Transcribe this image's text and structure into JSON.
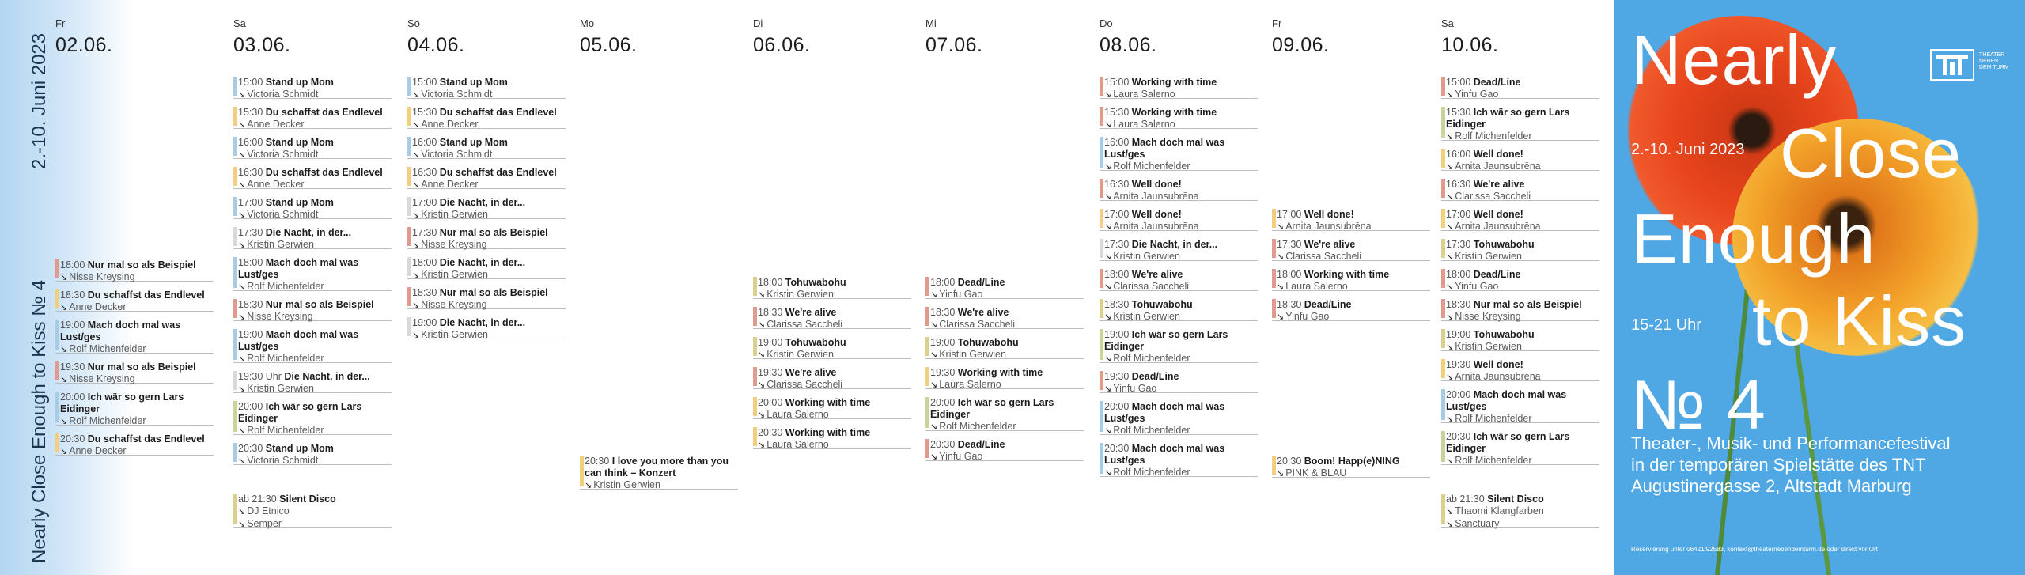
{
  "sidebar": {
    "title": "Nearly Close Enough to Kiss № 4",
    "dates": "2.-10. Juni 2023"
  },
  "days": [
    {
      "dow": "Fr",
      "date": "02.06.",
      "events": [
        {
          "time": "18:00",
          "title": "Nur mal so als Beispiel",
          "person": "Nisse Kreysing",
          "color": "#e39a8e"
        },
        {
          "time": "18:30",
          "title": "Du schaffst das Endlevel",
          "person": "Anne Decker",
          "color": "#f2cf7e"
        },
        {
          "time": "19:00",
          "title": "Mach doch mal was Lust/ges",
          "person": "Rolf Michenfelder",
          "color": "#a9cce6"
        },
        {
          "time": "19:30",
          "title": "Nur mal so als Beispiel",
          "person": "Nisse Kreysing",
          "color": "#e39a8e"
        },
        {
          "time": "20:00",
          "title": "Ich wär so gern Lars Eidinger",
          "person": "Rolf Michenfelder",
          "color": "#a9cce6"
        },
        {
          "time": "20:30",
          "title": "Du schaffst das Endlevel",
          "person": "Anne Decker",
          "color": "#f2cf7e"
        }
      ]
    },
    {
      "dow": "Sa",
      "date": "03.06.",
      "events": [
        {
          "time": "15:00",
          "title": "Stand up Mom",
          "person": "Victoria Schmidt",
          "color": "#a9cce6"
        },
        {
          "time": "15:30",
          "title": "Du schaffst das Endlevel",
          "person": "Anne Decker",
          "color": "#f2cf7e"
        },
        {
          "time": "16:00",
          "title": "Stand up Mom",
          "person": "Victoria Schmidt",
          "color": "#a9cce6"
        },
        {
          "time": "16:30",
          "title": "Du schaffst das Endlevel",
          "person": "Anne Decker",
          "color": "#f2cf7e"
        },
        {
          "time": "17:00",
          "title": "Stand up Mom",
          "person": "Victoria Schmidt",
          "color": "#a9cce6"
        },
        {
          "time": "17:30",
          "title": "Die Nacht, in der...",
          "person": "Kristin Gerwien",
          "color": "#d9d9d9"
        },
        {
          "time": "18:00",
          "title": "Mach doch mal was Lust/ges",
          "person": "Rolf Michenfelder",
          "color": "#a9cce6"
        },
        {
          "time": "18:30",
          "title": "Nur mal so als Beispiel",
          "person": "Nisse Kreysing",
          "color": "#e39a8e"
        },
        {
          "time": "19:00",
          "title": "Mach doch mal was Lust/ges",
          "person": "Rolf Michenfelder",
          "color": "#a9cce6"
        },
        {
          "time": "19:30 Uhr",
          "title": "Die Nacht, in der...",
          "person": "Kristin Gerwien",
          "color": "#d9d9d9"
        },
        {
          "time": "20:00",
          "title": "Ich wär so gern Lars Eidinger",
          "person": "Rolf Michenfelder",
          "color": "#c8d49a"
        },
        {
          "time": "20:30",
          "title": "Stand up Mom",
          "person": "Victoria Schmidt",
          "color": "#a9cce6"
        },
        {
          "time": "ab 21:30",
          "title": "Silent Disco",
          "person": "DJ Etnico",
          "person2": "Semper",
          "color": "#d8d28c"
        }
      ]
    },
    {
      "dow": "So",
      "date": "04.06.",
      "events": [
        {
          "time": "15:00",
          "title": "Stand up Mom",
          "person": "Victoria Schmidt",
          "color": "#a9cce6"
        },
        {
          "time": "15:30",
          "title": "Du schaffst das Endlevel",
          "person": "Anne Decker",
          "color": "#f2cf7e"
        },
        {
          "time": "16:00",
          "title": "Stand up Mom",
          "person": "Victoria Schmidt",
          "color": "#a9cce6"
        },
        {
          "time": "16:30",
          "title": "Du schaffst das Endlevel",
          "person": "Anne Decker",
          "color": "#f2cf7e"
        },
        {
          "time": "17:00",
          "title": "Die Nacht, in der...",
          "person": "Kristin Gerwien",
          "color": "#d9d9d9"
        },
        {
          "time": "17:30",
          "title": "Nur mal so als Beispiel",
          "person": "Nisse Kreysing",
          "color": "#e39a8e"
        },
        {
          "time": "18:00",
          "title": "Die Nacht, in der...",
          "person": "Kristin Gerwien",
          "color": "#d9d9d9"
        },
        {
          "time": "18:30",
          "title": "Nur mal so als Beispiel",
          "person": "Nisse Kreysing",
          "color": "#e39a8e"
        },
        {
          "time": "19:00",
          "title": "Die Nacht, in der...",
          "person": "Kristin Gerwien",
          "color": "#d9d9d9"
        }
      ]
    },
    {
      "dow": "Mo",
      "date": "05.06.",
      "events": [
        {
          "time": "20:30",
          "title": "I love you more than you can think – Konzert",
          "person": "Kristin Gerwien",
          "color": "#f2cf7e"
        }
      ]
    },
    {
      "dow": "Di",
      "date": "06.06.",
      "events": [
        {
          "time": "18:00",
          "title": "Tohuwabohu",
          "person": "Kristin Gerwien",
          "color": "#d8d28c"
        },
        {
          "time": "18:30",
          "title": "We're alive",
          "person": "Clarissa Saccheli",
          "color": "#e39a8e"
        },
        {
          "time": "19:00",
          "title": "Tohuwabohu",
          "person": "Kristin Gerwien",
          "color": "#d8d28c"
        },
        {
          "time": "19:30",
          "title": "We're alive",
          "person": "Clarissa Saccheli",
          "color": "#e39a8e"
        },
        {
          "time": "20:00",
          "title": "Working with time",
          "person": "Laura Salerno",
          "color": "#f2cf7e"
        },
        {
          "time": "20:30",
          "title": "Working with time",
          "person": "Laura Salerno",
          "color": "#f2cf7e"
        }
      ]
    },
    {
      "dow": "Mi",
      "date": "07.06.",
      "events": [
        {
          "time": "18:00",
          "title": "Dead/Line",
          "person": "Yinfu Gao",
          "color": "#e39a8e"
        },
        {
          "time": "18:30",
          "title": "We're alive",
          "person": "Clarissa Saccheli",
          "color": "#e39a8e"
        },
        {
          "time": "19:00",
          "title": "Tohuwabohu",
          "person": "Kristin Gerwien",
          "color": "#d8d28c"
        },
        {
          "time": "19:30",
          "title": "Working with time",
          "person": "Laura Salerno",
          "color": "#f2cf7e"
        },
        {
          "time": "20:00",
          "title": "Ich wär so gern Lars Eidinger",
          "person": "Rolf Michenfelder",
          "color": "#c8d49a"
        },
        {
          "time": "20:30",
          "title": "Dead/Line",
          "person": "Yinfu Gao",
          "color": "#e39a8e"
        }
      ]
    },
    {
      "dow": "Do",
      "date": "08.06.",
      "events": [
        {
          "time": "15:00",
          "title": "Working with time",
          "person": "Laura Salerno",
          "color": "#e39a8e"
        },
        {
          "time": "15:30",
          "title": "Working with time",
          "person": "Laura Salerno",
          "color": "#e39a8e"
        },
        {
          "time": "16:00",
          "title": "Mach doch mal was Lust/ges",
          "person": "Rolf Michenfelder",
          "color": "#a9cce6"
        },
        {
          "time": "16:30",
          "title": "Well done!",
          "person": "Arnita Jaunsubrēna",
          "color": "#e39a8e"
        },
        {
          "time": "17:00",
          "title": "Well done!",
          "person": "Arnita Jaunsubrēna",
          "color": "#f2cf7e"
        },
        {
          "time": "17:30",
          "title": "Die Nacht, in der...",
          "person": "Kristin Gerwien",
          "color": "#d9d9d9"
        },
        {
          "time": "18:00",
          "title": "We're alive",
          "person": "Clarissa Saccheli",
          "color": "#e39a8e"
        },
        {
          "time": "18:30",
          "title": "Tohuwabohu",
          "person": "Kristin Gerwien",
          "color": "#d8d28c"
        },
        {
          "time": "19:00",
          "title": "Ich wär so gern Lars Eidinger",
          "person": "Rolf Michenfelder",
          "color": "#c8d49a"
        },
        {
          "time": "19:30",
          "title": "Dead/Line",
          "person": "Yinfu Gao",
          "color": "#e39a8e"
        },
        {
          "time": "20:00",
          "title": "Mach doch mal was Lust/ges",
          "person": "Rolf Michenfelder",
          "color": "#a9cce6"
        },
        {
          "time": "20:30",
          "title": "Mach doch mal was Lust/ges",
          "person": "Rolf Michenfelder",
          "color": "#a9cce6"
        }
      ]
    },
    {
      "dow": "Fr",
      "date": "09.06.",
      "events": [
        {
          "time": "17:00",
          "title": "Well done!",
          "person": "Arnita Jaunsubrēna",
          "color": "#f2cf7e"
        },
        {
          "time": "17:30",
          "title": "We're alive",
          "person": "Clarissa Saccheli",
          "color": "#e39a8e"
        },
        {
          "time": "18:00",
          "title": "Working with time",
          "person": "Laura Salerno",
          "color": "#e39a8e"
        },
        {
          "time": "18:30",
          "title": "Dead/Line",
          "person": "Yinfu Gao",
          "color": "#e39a8e"
        },
        {
          "time": "20:30",
          "title": "Boom! Happ(e)NING",
          "person": "PINK & BLAU",
          "color": "#f2cf7e"
        }
      ]
    },
    {
      "dow": "Sa",
      "date": "10.06.",
      "events": [
        {
          "time": "15:00",
          "title": "Dead/Line",
          "person": "Yinfu Gao",
          "color": "#e39a8e"
        },
        {
          "time": "15:30",
          "title": "Ich wär so gern Lars Eidinger",
          "person": "Rolf Michenfelder",
          "color": "#c8d49a"
        },
        {
          "time": "16:00",
          "title": "Well done!",
          "person": "Arnita Jaunsubrēna",
          "color": "#f2cf7e"
        },
        {
          "time": "16:30",
          "title": "We're alive",
          "person": "Clarissa Saccheli",
          "color": "#e39a8e"
        },
        {
          "time": "17:00",
          "title": "Well done!",
          "person": "Arnita Jaunsubrēna",
          "color": "#f2cf7e"
        },
        {
          "time": "17:30",
          "title": "Tohuwabohu",
          "person": "Kristin Gerwien",
          "color": "#d8d28c"
        },
        {
          "time": "18:00",
          "title": "Dead/Line",
          "person": "Yinfu Gao",
          "color": "#e39a8e"
        },
        {
          "time": "18:30",
          "title": "Nur mal so als Beispiel",
          "person": "Nisse Kreysing",
          "color": "#e39a8e"
        },
        {
          "time": "19:00",
          "title": "Tohuwabohu",
          "person": "Kristin Gerwien",
          "color": "#d8d28c"
        },
        {
          "time": "19:30",
          "title": "Well done!",
          "person": "Arnita Jaunsubrēna",
          "color": "#f2cf7e"
        },
        {
          "time": "20:00",
          "title": "Mach doch mal was Lust/ges",
          "person": "Rolf Michenfelder",
          "color": "#a9cce6"
        },
        {
          "time": "20:30",
          "title": "Ich wär so gern Lars Eidinger",
          "person": "Rolf Michenfelder",
          "color": "#c8d49a"
        },
        {
          "time": "ab 21:30",
          "title": "Silent Disco",
          "person": "Thaomi Klangfarben",
          "person2": "Sanctuary",
          "color": "#d8d28c"
        }
      ]
    }
  ],
  "poster": {
    "title_line1": "Nearly",
    "title_line2": "Close",
    "title_line3": "Enough",
    "title_line4": "to Kiss",
    "title_line5": "№ 4",
    "date": "2.-10. Juni 2023",
    "hours": "15-21 Uhr",
    "logo_text": "THEATER NEBEN DEM TURM",
    "desc_line1": "Theater-, Musik- und Performancefestival",
    "desc_line2": "in der temporären Spielstätte des TNT",
    "desc_line3": "Augustinergasse 2, Altstadt Marburg",
    "contact": "Reservierung unter 06421/92583, kontakt@theaternebendemturm.de oder direkt vor Ort"
  }
}
